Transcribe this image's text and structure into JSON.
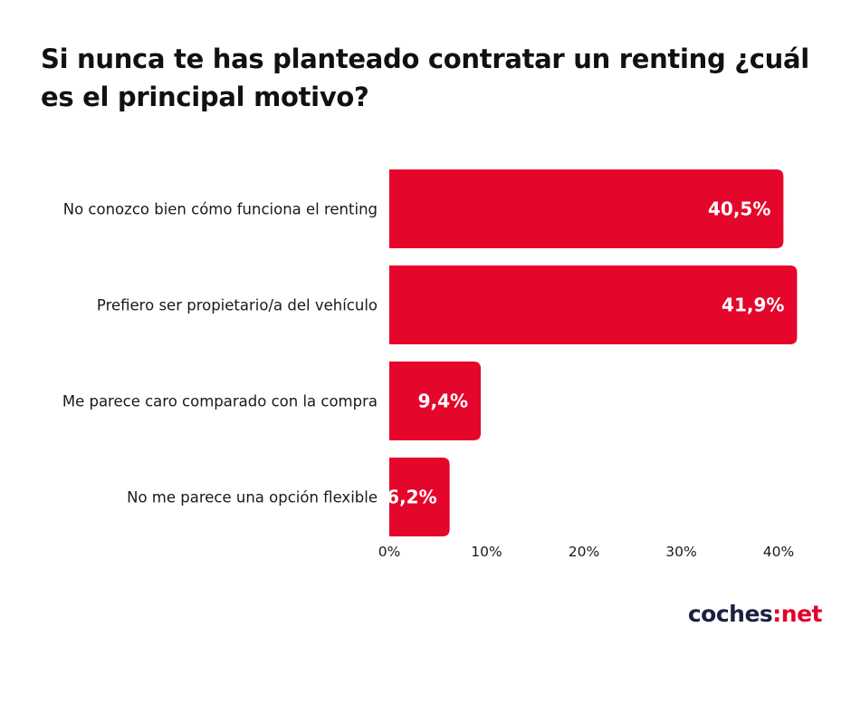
{
  "chart_data": {
    "type": "bar",
    "orientation": "horizontal",
    "title": "Si nunca te has planteado contratar un renting ¿cuál es el principal motivo?",
    "categories": [
      "No conozco bien cómo funciona el renting",
      "Prefiero ser propietario/a del vehículo",
      "Me parece caro comparado con la compra",
      "No me parece una opción flexible"
    ],
    "values": [
      40.5,
      41.9,
      9.4,
      6.2
    ],
    "data_labels": [
      "40,5%",
      "41,9%",
      "9,4%",
      "6,2%"
    ],
    "xlim": [
      0,
      40
    ],
    "ticks": [
      0,
      10,
      20,
      30,
      40
    ],
    "tick_labels": [
      "0%",
      "10%",
      "20%",
      "30%",
      "40%"
    ],
    "xlabel": "",
    "ylabel": "",
    "grid": false,
    "bar_color": "#e4062b"
  },
  "brand": {
    "name": "coches",
    "separator": ":",
    "tld": "net",
    "accent_color": "#e4002b"
  }
}
